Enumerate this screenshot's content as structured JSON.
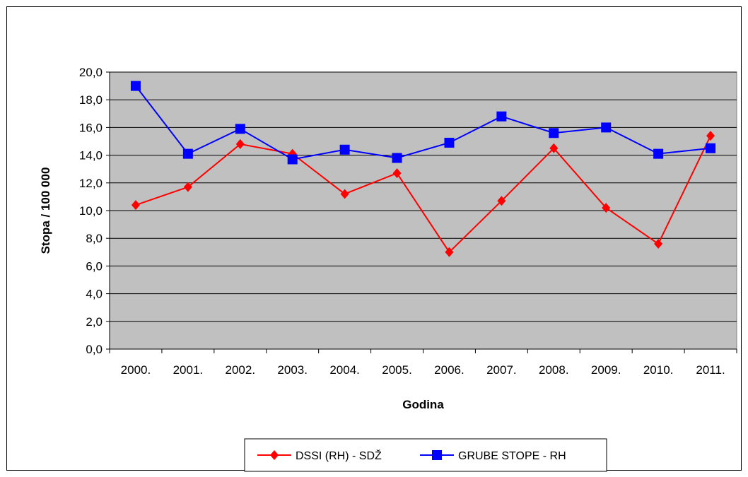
{
  "chart_data": {
    "type": "line",
    "title": "",
    "xlabel": "Godina",
    "ylabel": "Stopa / 100 000",
    "categories": [
      "2000.",
      "2001.",
      "2002.",
      "2003.",
      "2004.",
      "2005.",
      "2006.",
      "2007.",
      "2008.",
      "2009.",
      "2010.",
      "2011."
    ],
    "ylim": [
      0,
      20
    ],
    "yticks": [
      "0,0",
      "2,0",
      "4,0",
      "6,0",
      "8,0",
      "10,0",
      "12,0",
      "14,0",
      "16,0",
      "18,0",
      "20,0"
    ],
    "grid": true,
    "legend_position": "bottom",
    "series": [
      {
        "name": "DSSI (RH) - SDŽ",
        "color": "#ff0000",
        "marker": "diamond",
        "values": [
          10.4,
          11.7,
          14.8,
          14.1,
          11.2,
          12.7,
          7.0,
          10.7,
          14.5,
          10.2,
          7.6,
          15.4
        ]
      },
      {
        "name": "GRUBE STOPE - RH",
        "color": "#0000ff",
        "marker": "square",
        "values": [
          19.0,
          14.1,
          15.9,
          13.7,
          14.4,
          13.8,
          14.9,
          16.8,
          15.6,
          16.0,
          14.1,
          14.5
        ]
      }
    ],
    "plot_background": "#c0c0c0"
  }
}
